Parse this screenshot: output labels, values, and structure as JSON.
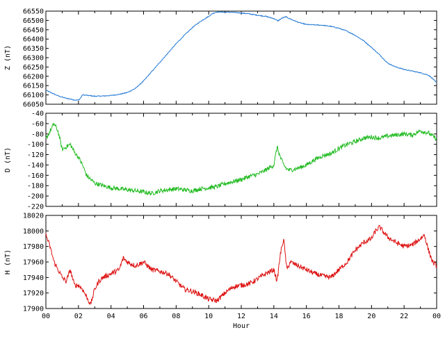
{
  "chart_data": [
    {
      "type": "line",
      "ylabel": "Z (nT)",
      "ylim": [
        66050,
        66550
      ],
      "yticks": [
        66050,
        66100,
        66150,
        66200,
        66250,
        66300,
        66350,
        66400,
        66450,
        66500,
        66550
      ],
      "xlim": [
        0,
        24
      ],
      "xtick_labels": [],
      "series": [
        {
          "color": "#1f77d4",
          "x": [
            0,
            0.25,
            0.5,
            0.75,
            1,
            1.25,
            1.5,
            1.75,
            2,
            2.1,
            2.25,
            2.5,
            3,
            3.5,
            4,
            4.5,
            5,
            5.5,
            6,
            6.5,
            7,
            7.5,
            8,
            8.5,
            9,
            9.5,
            10,
            10.25,
            10.5,
            11,
            11.5,
            12,
            12.5,
            13,
            13.5,
            14,
            14.25,
            14.5,
            14.75,
            15,
            15.5,
            16,
            16.5,
            17,
            17.5,
            18,
            18.5,
            19,
            19.5,
            20,
            20.5,
            21,
            21.5,
            22,
            22.5,
            23,
            23.5,
            23.75,
            24
          ],
          "y": [
            66125,
            66115,
            66105,
            66095,
            66088,
            66082,
            66078,
            66073,
            66072,
            66080,
            66100,
            66098,
            66093,
            66094,
            66097,
            66103,
            66113,
            66135,
            66175,
            66225,
            66275,
            66325,
            66375,
            66420,
            66462,
            66495,
            66522,
            66538,
            66545,
            66545,
            66543,
            66540,
            66535,
            66528,
            66522,
            66510,
            66498,
            66512,
            66520,
            66508,
            66490,
            66478,
            66476,
            66474,
            66468,
            66458,
            66442,
            66420,
            66392,
            66355,
            66315,
            66270,
            66250,
            66237,
            66228,
            66219,
            66206,
            66188,
            66165
          ]
        }
      ]
    },
    {
      "type": "line",
      "ylabel": "D (nT)",
      "ylim": [
        -220,
        -40
      ],
      "yticks": [
        -220,
        -200,
        -180,
        -160,
        -140,
        -120,
        -100,
        -80,
        -60,
        -40
      ],
      "xlim": [
        0,
        24
      ],
      "xtick_labels": [],
      "series": [
        {
          "color": "#22bb22",
          "x": [
            0,
            0.25,
            0.5,
            0.75,
            1,
            1.25,
            1.5,
            1.75,
            2,
            2.25,
            2.5,
            2.75,
            3,
            3.5,
            4,
            4.5,
            5,
            5.5,
            6,
            6.5,
            7,
            7.5,
            8,
            8.5,
            9,
            9.5,
            10,
            10.5,
            11,
            11.5,
            12,
            12.5,
            13,
            13.5,
            14,
            14.2,
            14.4,
            14.6,
            14.8,
            15,
            15.5,
            16,
            16.5,
            17,
            17.5,
            18,
            18.5,
            19,
            19.5,
            20,
            20.5,
            21,
            21.5,
            22,
            22.5,
            23,
            23.5,
            24
          ],
          "y": [
            -90,
            -75,
            -60,
            -75,
            -110,
            -105,
            -100,
            -115,
            -125,
            -140,
            -160,
            -168,
            -175,
            -180,
            -184,
            -186,
            -188,
            -190,
            -192,
            -195,
            -190,
            -188,
            -186,
            -188,
            -190,
            -186,
            -184,
            -182,
            -176,
            -172,
            -168,
            -162,
            -158,
            -150,
            -140,
            -105,
            -125,
            -140,
            -148,
            -150,
            -146,
            -140,
            -130,
            -122,
            -118,
            -108,
            -100,
            -95,
            -88,
            -86,
            -88,
            -84,
            -82,
            -80,
            -82,
            -74,
            -78,
            -90
          ]
        }
      ]
    },
    {
      "type": "line",
      "ylabel": "H (nT)",
      "xlabel": "Hour",
      "ylim": [
        17900,
        18020
      ],
      "yticks": [
        17900,
        17920,
        17940,
        17960,
        17980,
        18000,
        18020
      ],
      "xlim": [
        0,
        24
      ],
      "xtick_labels": [
        "00",
        "02",
        "04",
        "06",
        "08",
        "10",
        "12",
        "14",
        "16",
        "18",
        "20",
        "22",
        "00"
      ],
      "series": [
        {
          "color": "#dd1111",
          "x": [
            0,
            0.25,
            0.5,
            0.75,
            1,
            1.25,
            1.5,
            1.75,
            2,
            2.25,
            2.5,
            2.75,
            3,
            3.25,
            3.5,
            4,
            4.5,
            4.75,
            5,
            5.5,
            6,
            6.5,
            7,
            7.5,
            8,
            8.5,
            9,
            9.5,
            10,
            10.5,
            11,
            11.5,
            12,
            12.5,
            13,
            13.5,
            14,
            14.2,
            14.4,
            14.6,
            14.8,
            15,
            15.5,
            16,
            16.5,
            17,
            17.5,
            18,
            18.5,
            19,
            19.5,
            20,
            20.25,
            20.5,
            20.75,
            21,
            21.5,
            22,
            22.5,
            23,
            23.25,
            23.5,
            23.75,
            24
          ],
          "y": [
            17995,
            17980,
            17960,
            17950,
            17940,
            17935,
            17950,
            17930,
            17930,
            17925,
            17915,
            17905,
            17925,
            17935,
            17940,
            17945,
            17950,
            17965,
            17960,
            17955,
            17960,
            17950,
            17948,
            17945,
            17935,
            17925,
            17922,
            17918,
            17912,
            17910,
            17920,
            17928,
            17930,
            17932,
            17938,
            17945,
            17950,
            17935,
            17970,
            17990,
            17950,
            17960,
            17955,
            17950,
            17945,
            17942,
            17940,
            17950,
            17960,
            17975,
            17985,
            17990,
            18000,
            18005,
            17998,
            17992,
            17985,
            17980,
            17982,
            17990,
            17995,
            17975,
            17960,
            17955
          ]
        }
      ]
    }
  ]
}
